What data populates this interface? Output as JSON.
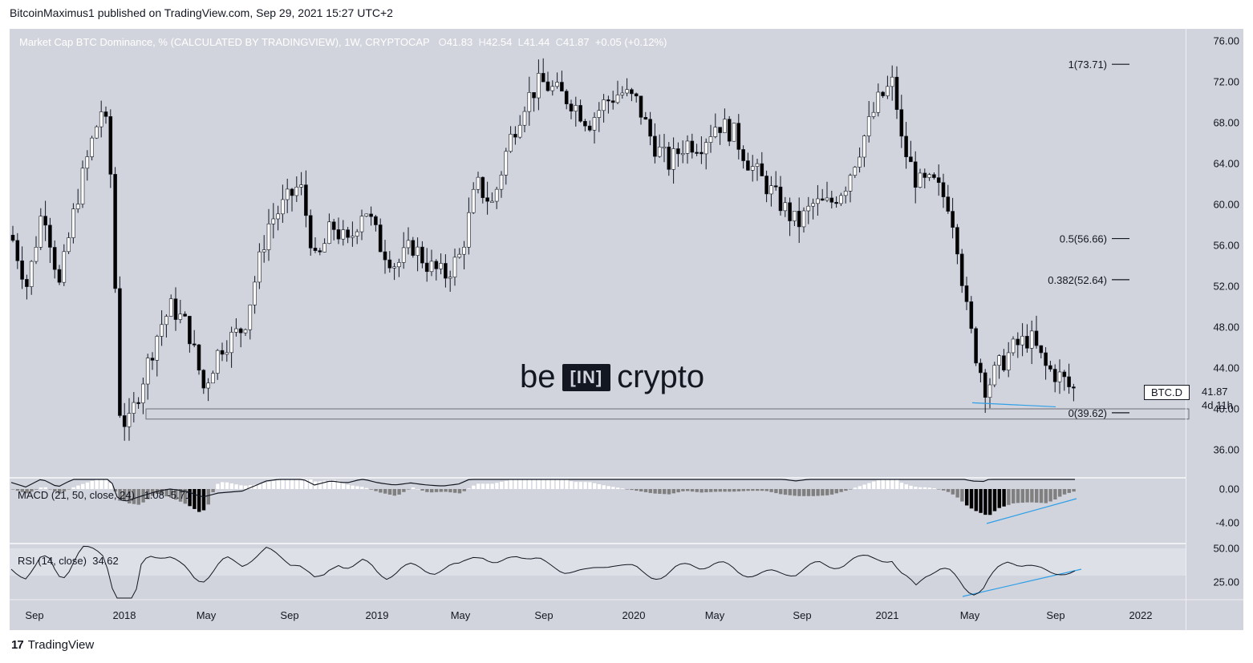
{
  "header": "BitcoinMaximus1 published on TradingView.com, Sep 29, 2021 15:27 UTC+2",
  "legend": {
    "symbol": "Market Cap BTC Dominance, % (CALCULATED BY TRADINGVIEW), 1W, CRYPTOCAP",
    "o_label": "O",
    "o": "41.83",
    "h_label": "H",
    "h": "42.54",
    "l_label": "L",
    "l": "41.44",
    "c_label": "C",
    "c": "41.87",
    "change": "+0.05 (+0.12%)"
  },
  "macd_label": "MACD (21, 50, close, 24)",
  "macd_values": "-1.08  -5.71",
  "rsi_label": "RSI (14, close)",
  "rsi_value": "34.62",
  "ticker": "BTC.D",
  "last_price": "41.87",
  "countdown": "4d 11h",
  "watermark": {
    "left": "be",
    "mid": "[IN]",
    "right": "crypto"
  },
  "footer": "TradingView",
  "colors": {
    "bg": "#d1d4dc",
    "up": "#ffffff",
    "down": "#000000",
    "trendline": "#2e9fe8"
  },
  "chart_data": {
    "type": "candlestick",
    "main_y_ticks": [
      "76.00",
      "72.00",
      "68.00",
      "64.00",
      "60.00",
      "56.00",
      "52.00",
      "48.00",
      "44.00",
      "40.00",
      "36.00"
    ],
    "macd_y_ticks": [
      "0.00",
      "-4.00"
    ],
    "rsi_y_ticks": [
      "50.00",
      "25.00"
    ],
    "x_ticks": [
      "Sep",
      "2018",
      "May",
      "Sep",
      "2019",
      "May",
      "Sep",
      "2020",
      "May",
      "Sep",
      "2021",
      "May",
      "Sep",
      "2022"
    ],
    "fib_levels": [
      {
        "label": "1(73.71)",
        "value": 73.71
      },
      {
        "label": "0.5(56.66)",
        "value": 56.66
      },
      {
        "label": "0.382(52.64)",
        "value": 52.64
      },
      {
        "label": "0(39.62)",
        "value": 39.62
      }
    ],
    "support_zone": [
      39.0,
      40.0
    ],
    "key_points": [
      {
        "date": "2017-06",
        "close": 57
      },
      {
        "date": "2017-12",
        "high": 71,
        "close": 67
      },
      {
        "date": "2018-01",
        "low": 34,
        "close": 38
      },
      {
        "date": "2018-05",
        "close": 47
      },
      {
        "date": "2018-09",
        "close": 60
      },
      {
        "date": "2019-03",
        "close": 52
      },
      {
        "date": "2019-09",
        "high": 73,
        "close": 71
      },
      {
        "date": "2020-03",
        "close": 63
      },
      {
        "date": "2020-08",
        "low": 57,
        "close": 58
      },
      {
        "date": "2021-01",
        "high": 73.7,
        "close": 69
      },
      {
        "date": "2021-05",
        "low": 39.6,
        "close": 42
      },
      {
        "date": "2021-07",
        "high": 49,
        "close": 47
      },
      {
        "date": "2021-09",
        "close": 41.87
      }
    ]
  }
}
